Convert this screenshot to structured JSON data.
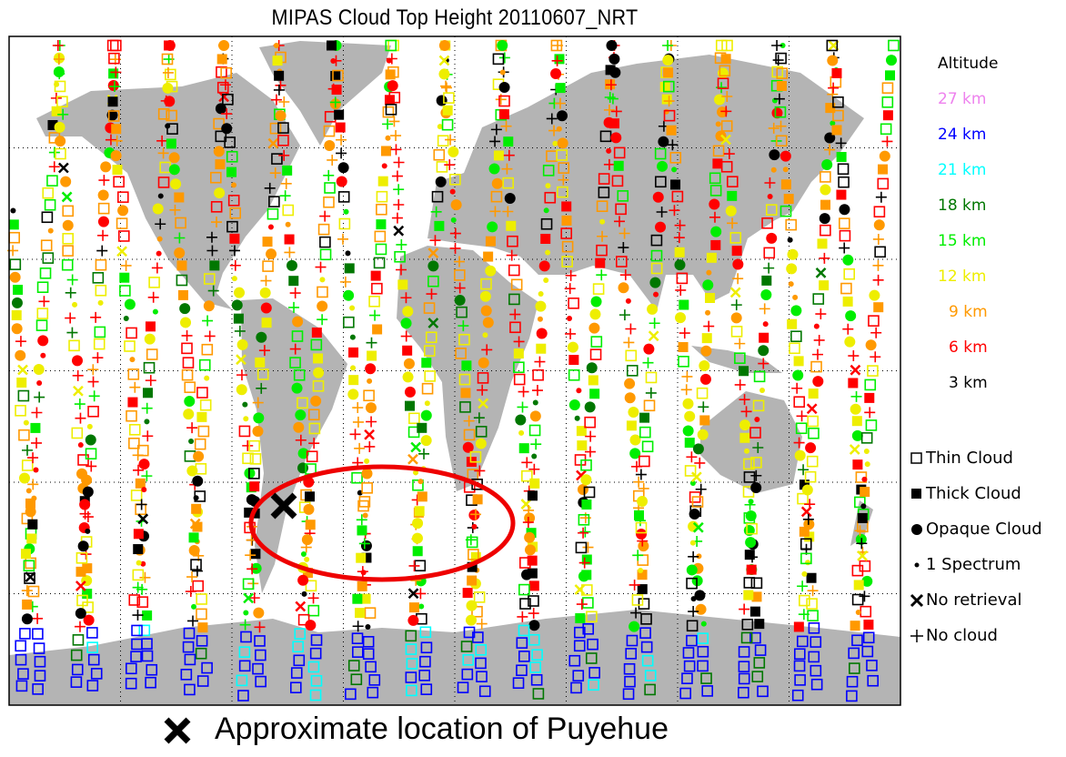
{
  "title": "MIPAS Cloud Top Height 20110607_NRT",
  "legend": {
    "title": "Altitude",
    "altitudes": [
      {
        "label": "27 km",
        "color": "#ee82ee"
      },
      {
        "label": "24 km",
        "color": "#0000ff"
      },
      {
        "label": "21 km",
        "color": "#00ffff"
      },
      {
        "label": "18 km",
        "color": "#007700"
      },
      {
        "label": "15 km",
        "color": "#00ee00"
      },
      {
        "label": "12 km",
        "color": "#eeee00"
      },
      {
        "label": "9 km",
        "color": "#ff9900"
      },
      {
        "label": "6 km",
        "color": "#ff0000"
      },
      {
        "label": "3 km",
        "color": "#000000"
      }
    ],
    "types": [
      {
        "label": "Thin Cloud",
        "icon": "open-square"
      },
      {
        "label": "Thick Cloud",
        "icon": "filled-square"
      },
      {
        "label": "Opaque Cloud",
        "icon": "filled-circle"
      },
      {
        "label": "1 Spectrum",
        "icon": "small-dot"
      },
      {
        "label": "No retrieval",
        "icon": "x-cross"
      },
      {
        "label": "No cloud",
        "icon": "plus"
      }
    ]
  },
  "annotation": {
    "caption": "Approximate location of Puyehue",
    "marker_icon": "x-cross",
    "highlight_color": "#ff0000"
  },
  "map": {
    "land_color": "#b4b4b4",
    "grid": "dotted",
    "lon_step_deg": 45,
    "lat_step_deg": 30
  }
}
